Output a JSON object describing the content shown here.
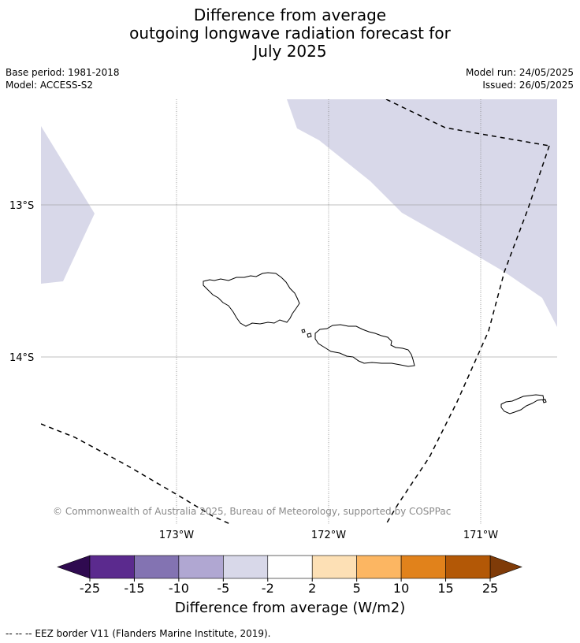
{
  "title": {
    "line1": "Difference from average",
    "line2": "outgoing longwave radiation forecast for",
    "line3": "July 2025"
  },
  "meta": {
    "base_period": "Base period: 1981-2018",
    "model": "Model: ACCESS-S2",
    "model_run": "Model run: 24/05/2025",
    "issued": "Issued: 26/05/2025"
  },
  "map": {
    "latitude_labels": [
      "13°S",
      "14°S"
    ],
    "longitude_labels": [
      "173°W",
      "172°W",
      "171°W"
    ],
    "copyright": "© Commonwealth of Australia 2025, Bureau of Meteorology, supported by COSPPac",
    "shaded_anomaly_category": "-5 to -2",
    "shaded_color": "#d8d8e9",
    "coastline_color": "#000000",
    "eez_line_style": "dashed"
  },
  "colorbar": {
    "title": "Difference from average (W/m2)",
    "ticks": [
      "-25",
      "-15",
      "-10",
      "-5",
      "-2",
      "2",
      "5",
      "10",
      "15",
      "25"
    ],
    "colors": [
      "#5b2a8e",
      "#8373b2",
      "#b0a7d2",
      "#d8d8e9",
      "#ffffff",
      "#fde0b5",
      "#fcb662",
      "#e1821b",
      "#b35806"
    ],
    "under_color": "#2f0a50",
    "over_color": "#7f3b08"
  },
  "footer": {
    "legend_text": "--  --  -- EEZ border V11 (Flanders Marine Institute, 2019)."
  }
}
